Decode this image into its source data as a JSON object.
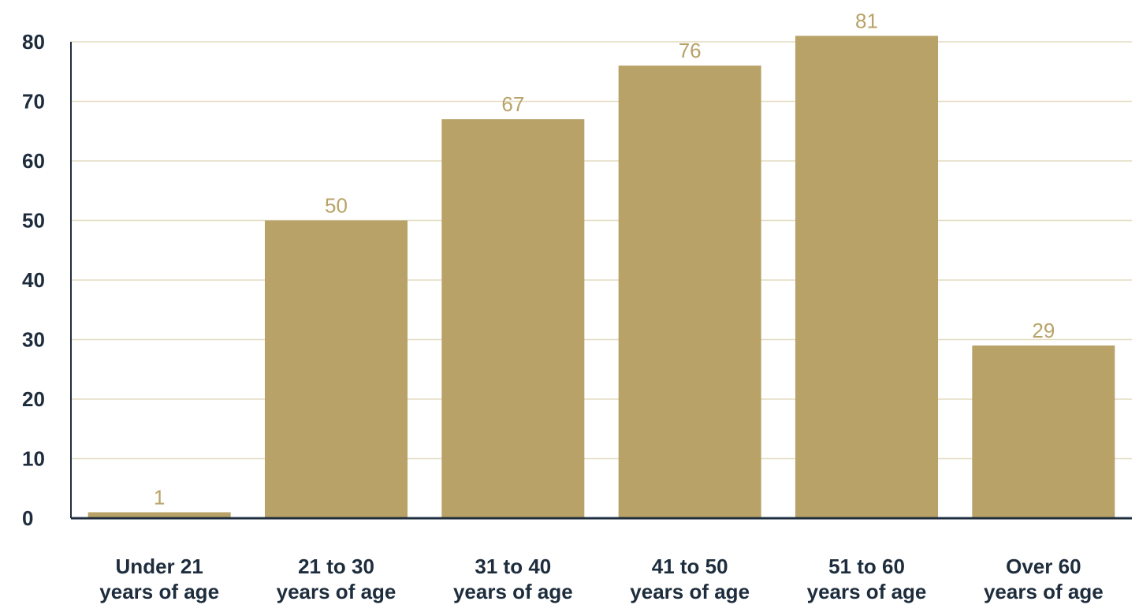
{
  "chart_data": {
    "type": "bar",
    "categories": [
      [
        "Under 21",
        "years of age"
      ],
      [
        "21 to 30",
        "years of age"
      ],
      [
        "31 to 40",
        "years of age"
      ],
      [
        "41 to 50",
        "years of age"
      ],
      [
        "51 to 60",
        "years of age"
      ],
      [
        "Over 60",
        "years of age"
      ]
    ],
    "values": [
      1,
      50,
      67,
      76,
      81,
      29
    ],
    "data_labels": [
      "1",
      "50",
      "67",
      "76",
      "81",
      "29"
    ],
    "yticks": [
      0,
      10,
      20,
      30,
      40,
      50,
      60,
      70,
      80
    ],
    "ylim": [
      0,
      80
    ],
    "grid": true,
    "legend": "none",
    "colors": {
      "bar": "#b8a267",
      "data_label": "#b8a267",
      "axis": "#1e2d3d",
      "tick_label": "#1e2d3d",
      "grid": "#e4dcc0"
    }
  }
}
